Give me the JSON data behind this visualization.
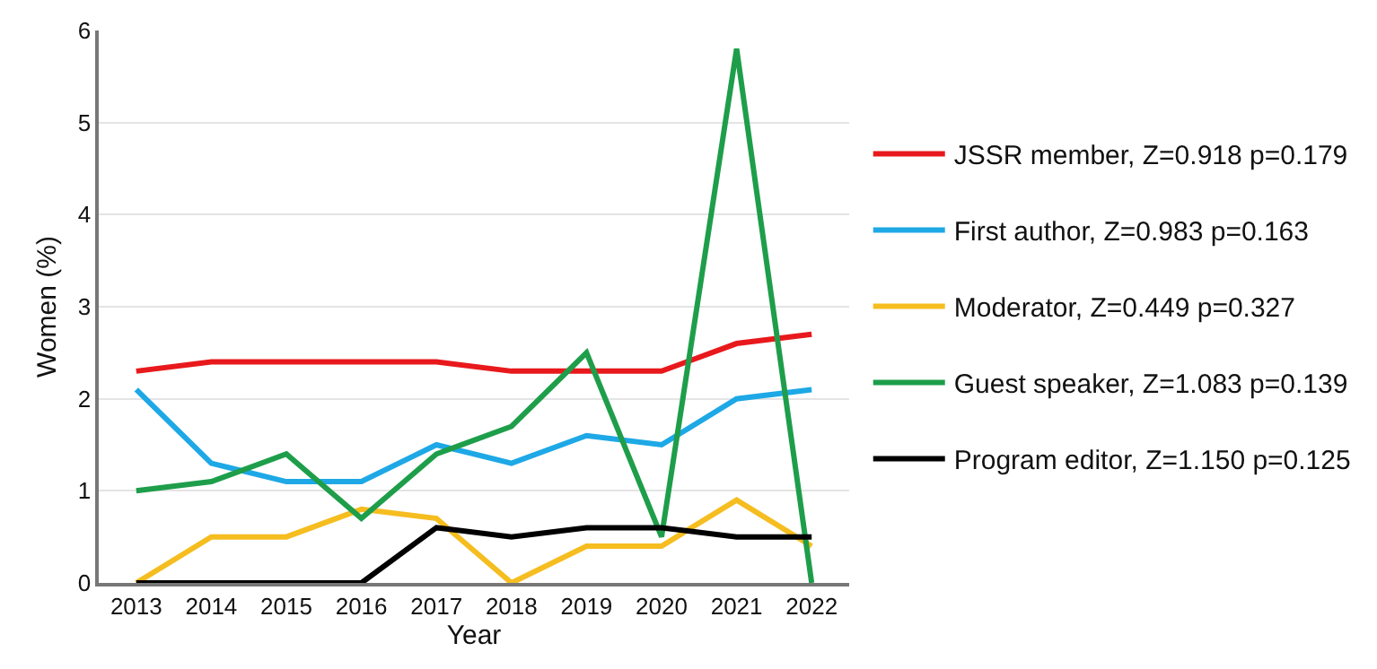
{
  "chart_data": {
    "type": "line",
    "xlabel": "Year",
    "ylabel": "Women (%)",
    "categories": [
      "2013",
      "2014",
      "2015",
      "2016",
      "2017",
      "2018",
      "2019",
      "2020",
      "2021",
      "2022"
    ],
    "series": [
      {
        "name": "JSSR member, Z=0.918 p=0.179",
        "color": "#e8191c",
        "values": [
          2.3,
          2.4,
          2.4,
          2.4,
          2.4,
          2.3,
          2.3,
          2.3,
          2.6,
          2.7
        ]
      },
      {
        "name": "First author, Z=0.983 p=0.163",
        "color": "#1ea8e6",
        "values": [
          2.1,
          1.3,
          1.1,
          1.1,
          1.5,
          1.3,
          1.6,
          1.5,
          2.0,
          2.1
        ]
      },
      {
        "name": "Moderator, Z=0.449 p=0.327",
        "color": "#f5bd1f",
        "values": [
          0,
          0.5,
          0.5,
          0.8,
          0.7,
          0,
          0.4,
          0.4,
          0.9,
          0.4
        ]
      },
      {
        "name": "Guest speaker, Z=1.083 p=0.139",
        "color": "#1e9e4a",
        "values": [
          1.0,
          1.1,
          1.4,
          0.7,
          1.4,
          1.7,
          2.5,
          0.5,
          5.8,
          0
        ]
      },
      {
        "name": "Program editor, Z=1.150 p=0.125",
        "color": "#000000",
        "values": [
          0,
          0,
          0,
          0,
          0.6,
          0.5,
          0.6,
          0.6,
          0.5,
          0.5
        ]
      }
    ],
    "ylim": [
      0,
      6
    ],
    "yticks": [
      0,
      1,
      2,
      3,
      4,
      5,
      6
    ],
    "grid": "y",
    "legend": "right",
    "marker": "none",
    "line_style": "solid"
  }
}
